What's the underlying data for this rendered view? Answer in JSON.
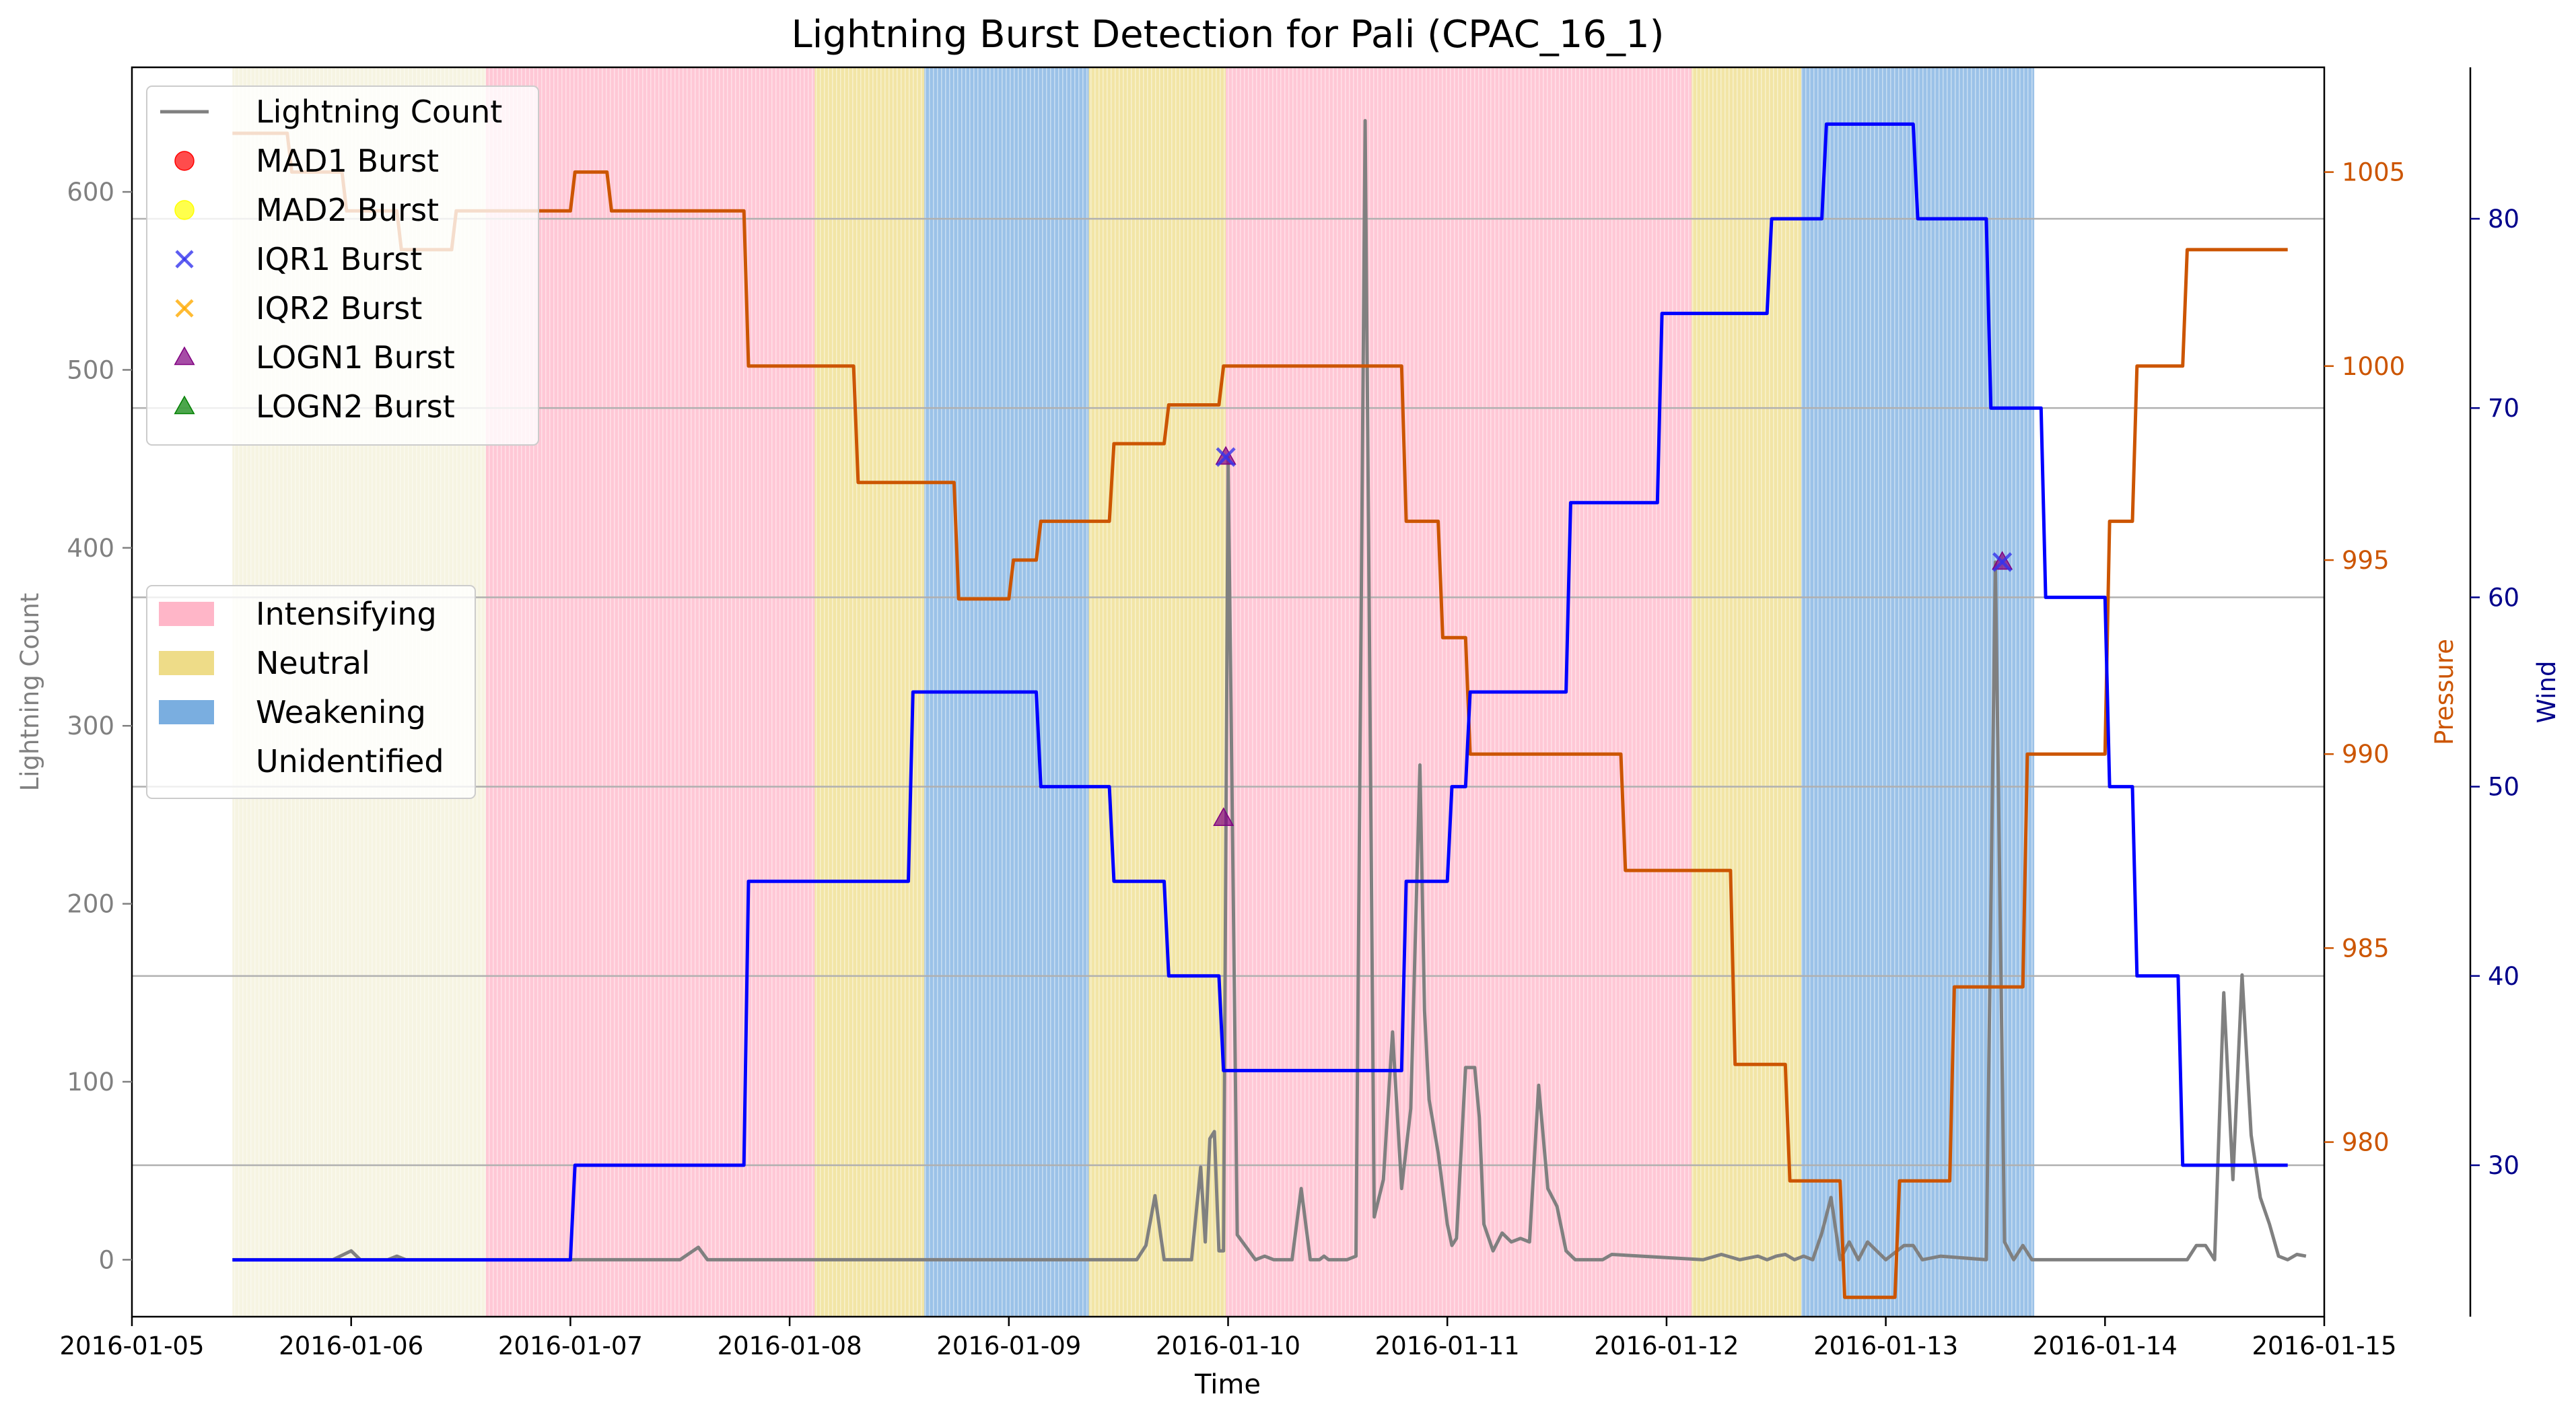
{
  "chart_data": {
    "type": "line",
    "title": "Lightning Burst Detection for Pali (CPAC_16_1)",
    "xlabel": "Time",
    "x_range": [
      "2016-01-05T00:00",
      "2016-01-15T00:00"
    ],
    "x_ticks": [
      "2016-01-05",
      "2016-01-06",
      "2016-01-07",
      "2016-01-08",
      "2016-01-09",
      "2016-01-10",
      "2016-01-11",
      "2016-01-12",
      "2016-01-13",
      "2016-01-14",
      "2016-01-15"
    ],
    "grid": "horizontal lines at the wind axis ticks",
    "colors": {
      "lightning": "#808080",
      "pressure": "#cc5500",
      "wind": "#0000ff",
      "wind_axis": "#00008b",
      "intensifying": "#ffb6c8",
      "neutral": "#eedc88",
      "weakening": "#7aaee0",
      "unidentified": "#ffffff",
      "mad1": "#ff0000",
      "mad2": "#ffff00",
      "iqr1": "#3333ee",
      "iqr2": "#ffaa00",
      "logn1": "#800080",
      "logn2": "#008000",
      "grid": "#b0b0b0",
      "dark_neutral": "#f6f4e2"
    },
    "axes": {
      "lightning": {
        "label": "Lightning Count",
        "range": [
          -32,
          670
        ],
        "ticks": [
          0,
          100,
          200,
          300,
          400,
          500,
          600
        ]
      },
      "pressure": {
        "label": "Pressure",
        "range": [
          975.5,
          1007.7
        ],
        "ticks": [
          980,
          985,
          990,
          995,
          1000,
          1005
        ]
      },
      "wind": {
        "label": "Wind",
        "range": [
          22,
          88
        ],
        "ticks": [
          30,
          40,
          50,
          60,
          70,
          80
        ]
      }
    },
    "stages": [
      {
        "start": "2016-01-05T11:00",
        "end": "2016-01-06T14:45",
        "stage": "Neutral",
        "tone": "light"
      },
      {
        "start": "2016-01-06T14:45",
        "end": "2016-01-08T02:45",
        "stage": "Intensifying"
      },
      {
        "start": "2016-01-08T02:45",
        "end": "2016-01-08T14:45",
        "stage": "Neutral"
      },
      {
        "start": "2016-01-08T14:45",
        "end": "2016-01-09T08:45",
        "stage": "Weakening"
      },
      {
        "start": "2016-01-09T08:45",
        "end": "2016-01-09T23:45",
        "stage": "Neutral"
      },
      {
        "start": "2016-01-09T23:45",
        "end": "2016-01-12T02:45",
        "stage": "Intensifying"
      },
      {
        "start": "2016-01-12T02:45",
        "end": "2016-01-12T14:45",
        "stage": "Neutral"
      },
      {
        "start": "2016-01-12T14:45",
        "end": "2016-01-13T16:15",
        "stage": "Weakening"
      }
    ],
    "series": [
      {
        "name": "Lightning Count",
        "axis": "lightning",
        "x": [
          "2016-01-05T11:00",
          "2016-01-05T12:00",
          "2016-01-05T13:00",
          "2016-01-05T14:00",
          "2016-01-05T22:00",
          "2016-01-06T00:00",
          "2016-01-06T01:00",
          "2016-01-06T02:00",
          "2016-01-06T04:00",
          "2016-01-06T05:00",
          "2016-01-06T06:00",
          "2016-01-06T12:00",
          "2016-01-06T14:00",
          "2016-01-06T18:00",
          "2016-01-07T00:00",
          "2016-01-07T12:00",
          "2016-01-07T14:00",
          "2016-01-07T15:00",
          "2016-01-07T16:00",
          "2016-01-09T00:00",
          "2016-01-09T12:00",
          "2016-01-09T13:00",
          "2016-01-09T14:00",
          "2016-01-09T15:00",
          "2016-01-09T16:00",
          "2016-01-09T17:00",
          "2016-01-09T18:00",
          "2016-01-09T19:00",
          "2016-01-09T20:00",
          "2016-01-09T21:00",
          "2016-01-09T21:30",
          "2016-01-09T22:00",
          "2016-01-09T22:30",
          "2016-01-09T23:00",
          "2016-01-09T23:30",
          "2016-01-10T00:00",
          "2016-01-10T01:00",
          "2016-01-10T03:00",
          "2016-01-10T04:00",
          "2016-01-10T05:00",
          "2016-01-10T06:00",
          "2016-01-10T07:00",
          "2016-01-10T08:00",
          "2016-01-10T09:00",
          "2016-01-10T10:00",
          "2016-01-10T10:30",
          "2016-01-10T11:00",
          "2016-01-10T12:00",
          "2016-01-10T13:00",
          "2016-01-10T14:00",
          "2016-01-10T15:00",
          "2016-01-10T16:00",
          "2016-01-10T17:00",
          "2016-01-10T18:00",
          "2016-01-10T19:00",
          "2016-01-10T20:00",
          "2016-01-10T21:00",
          "2016-01-10T21:30",
          "2016-01-10T22:00",
          "2016-01-10T23:00",
          "2016-01-11T00:00",
          "2016-01-11T00:30",
          "2016-01-11T01:00",
          "2016-01-11T02:00",
          "2016-01-11T03:00",
          "2016-01-11T03:30",
          "2016-01-11T04:00",
          "2016-01-11T05:00",
          "2016-01-11T06:00",
          "2016-01-11T07:00",
          "2016-01-11T08:00",
          "2016-01-11T09:00",
          "2016-01-11T10:00",
          "2016-01-11T11:00",
          "2016-01-11T12:00",
          "2016-01-11T13:00",
          "2016-01-11T14:00",
          "2016-01-11T16:00",
          "2016-01-11T17:00",
          "2016-01-11T18:00",
          "2016-01-12T04:00",
          "2016-01-12T06:00",
          "2016-01-12T08:00",
          "2016-01-12T10:00",
          "2016-01-12T11:00",
          "2016-01-12T12:00",
          "2016-01-12T13:00",
          "2016-01-12T14:00",
          "2016-01-12T15:00",
          "2016-01-12T16:00",
          "2016-01-12T17:00",
          "2016-01-12T18:00",
          "2016-01-12T19:00",
          "2016-01-12T20:00",
          "2016-01-12T21:00",
          "2016-01-12T22:00",
          "2016-01-13T00:00",
          "2016-01-13T02:00",
          "2016-01-13T03:00",
          "2016-01-13T04:00",
          "2016-01-13T06:00",
          "2016-01-13T11:00",
          "2016-01-13T12:00",
          "2016-01-13T13:00",
          "2016-01-13T14:00",
          "2016-01-13T15:00",
          "2016-01-13T16:00",
          "2016-01-13T17:00",
          "2016-01-13T18:00",
          "2016-01-14T00:00",
          "2016-01-14T08:00",
          "2016-01-14T09:00",
          "2016-01-14T10:00",
          "2016-01-14T11:00",
          "2016-01-14T12:00",
          "2016-01-14T13:00",
          "2016-01-14T14:00",
          "2016-01-14T15:00",
          "2016-01-14T16:00",
          "2016-01-14T17:00",
          "2016-01-14T18:00",
          "2016-01-14T19:00",
          "2016-01-14T20:00",
          "2016-01-14T21:00",
          "2016-01-14T22:00"
        ],
        "values": [
          0,
          0,
          0,
          0,
          0,
          5,
          0,
          0,
          0,
          2,
          0,
          0,
          0,
          0,
          0,
          0,
          7,
          0,
          0,
          0,
          0,
          0,
          0,
          8,
          36,
          0,
          0,
          0,
          0,
          52,
          10,
          68,
          72,
          5,
          5,
          451,
          14,
          0,
          2,
          0,
          0,
          0,
          40,
          0,
          0,
          2,
          0,
          0,
          0,
          2,
          640,
          24,
          45,
          128,
          40,
          85,
          278,
          140,
          90,
          60,
          20,
          8,
          12,
          108,
          108,
          80,
          20,
          5,
          15,
          10,
          12,
          10,
          98,
          40,
          30,
          5,
          0,
          0,
          0,
          3,
          0,
          3,
          0,
          2,
          0,
          2,
          3,
          0,
          2,
          0,
          15,
          35,
          0,
          10,
          0,
          10,
          0,
          8,
          8,
          0,
          2,
          0,
          392,
          10,
          0,
          8,
          0,
          0,
          0,
          0,
          0,
          0,
          8,
          8,
          0,
          150,
          45,
          160,
          70,
          35,
          20,
          2,
          0,
          3,
          2
        ],
        "show_all_samples": true
      },
      {
        "name": "Pressure",
        "axis": "pressure",
        "x": [
          "2016-01-05T11:00",
          "2016-01-05T17:00",
          "2016-01-05T17:30",
          "2016-01-05T23:00",
          "2016-01-05T23:30",
          "2016-01-06T05:00",
          "2016-01-06T05:30",
          "2016-01-06T11:00",
          "2016-01-06T11:30",
          "2016-01-07T00:00",
          "2016-01-07T00:30",
          "2016-01-07T04:00",
          "2016-01-07T04:30",
          "2016-01-07T19:00",
          "2016-01-07T19:30",
          "2016-01-08T07:00",
          "2016-01-08T07:30",
          "2016-01-08T18:00",
          "2016-01-08T18:30",
          "2016-01-09T00:00",
          "2016-01-09T00:30",
          "2016-01-09T03:00",
          "2016-01-09T03:30",
          "2016-01-09T11:00",
          "2016-01-09T11:30",
          "2016-01-09T17:00",
          "2016-01-09T17:30",
          "2016-01-09T23:00",
          "2016-01-09T23:30",
          "2016-01-10T19:00",
          "2016-01-10T19:30",
          "2016-01-10T23:00",
          "2016-01-10T23:30",
          "2016-01-11T02:00",
          "2016-01-11T02:30",
          "2016-01-11T19:00",
          "2016-01-11T19:30",
          "2016-01-12T07:00",
          "2016-01-12T07:30",
          "2016-01-12T13:00",
          "2016-01-12T13:30",
          "2016-01-12T19:00",
          "2016-01-12T19:30",
          "2016-01-13T01:00",
          "2016-01-13T01:30",
          "2016-01-13T07:00",
          "2016-01-13T07:30",
          "2016-01-13T15:00",
          "2016-01-13T15:30",
          "2016-01-14T00:00",
          "2016-01-14T00:30",
          "2016-01-14T03:00",
          "2016-01-14T03:30",
          "2016-01-14T08:30",
          "2016-01-14T09:00",
          "2016-01-14T20:00"
        ],
        "values": [
          1006,
          1006,
          1005,
          1005,
          1004,
          1004,
          1003,
          1003,
          1004,
          1004,
          1005,
          1005,
          1004,
          1004,
          1000,
          1000,
          997,
          997,
          994,
          994,
          995,
          995,
          996,
          996,
          998,
          998,
          999,
          999,
          1000,
          1000,
          996,
          996,
          993,
          993,
          990,
          990,
          987,
          987,
          982,
          982,
          979,
          979,
          976,
          976,
          979,
          979,
          984,
          984,
          990,
          990,
          996,
          996,
          1000,
          1000,
          1003,
          1003
        ],
        "draw_as_path": true
      },
      {
        "name": "Wind",
        "axis": "wind",
        "x": [
          "2016-01-05T11:00",
          "2016-01-07T00:00",
          "2016-01-07T00:30",
          "2016-01-07T19:00",
          "2016-01-07T19:30",
          "2016-01-08T13:00",
          "2016-01-08T13:30",
          "2016-01-09T03:00",
          "2016-01-09T03:30",
          "2016-01-09T11:00",
          "2016-01-09T11:30",
          "2016-01-09T17:00",
          "2016-01-09T17:30",
          "2016-01-09T23:00",
          "2016-01-09T23:30",
          "2016-01-10T19:00",
          "2016-01-10T19:30",
          "2016-01-11T00:00",
          "2016-01-11T00:30",
          "2016-01-11T02:00",
          "2016-01-11T02:30",
          "2016-01-11T13:00",
          "2016-01-11T13:30",
          "2016-01-11T23:00",
          "2016-01-11T23:30",
          "2016-01-12T11:00",
          "2016-01-12T11:30",
          "2016-01-12T17:00",
          "2016-01-12T17:30",
          "2016-01-13T03:00",
          "2016-01-13T03:30",
          "2016-01-13T11:00",
          "2016-01-13T11:30",
          "2016-01-13T17:00",
          "2016-01-13T17:30",
          "2016-01-14T00:00",
          "2016-01-14T00:30",
          "2016-01-14T03:00",
          "2016-01-14T03:30",
          "2016-01-14T08:00",
          "2016-01-14T08:30",
          "2016-01-14T20:00"
        ],
        "values": [
          25,
          25,
          30,
          30,
          45,
          45,
          55,
          55,
          50,
          50,
          45,
          45,
          40,
          40,
          35,
          35,
          45,
          45,
          50,
          50,
          55,
          55,
          65,
          65,
          75,
          75,
          80,
          80,
          85,
          85,
          80,
          80,
          70,
          70,
          60,
          60,
          50,
          50,
          40,
          40,
          30,
          30
        ],
        "draw_as_path": true
      }
    ],
    "bursts": {
      "IQR1 Burst": [
        {
          "x": "2016-01-09T23:45",
          "y": 451
        },
        {
          "x": "2016-01-13T12:45",
          "y": 392
        }
      ],
      "LOGN1 Burst": [
        {
          "x": "2016-01-09T23:45",
          "y": 451
        },
        {
          "x": "2016-01-09T23:30",
          "y": 248
        },
        {
          "x": "2016-01-13T12:45",
          "y": 392
        }
      ]
    },
    "legend_markers": [
      {
        "label": "Lightning Count",
        "kind": "line",
        "color": "lightning"
      },
      {
        "label": "MAD1 Burst",
        "kind": "circle",
        "color": "mad1"
      },
      {
        "label": "MAD2 Burst",
        "kind": "circle",
        "color": "mad2"
      },
      {
        "label": "IQR1 Burst",
        "kind": "cross",
        "color": "iqr1"
      },
      {
        "label": "IQR2 Burst",
        "kind": "cross",
        "color": "iqr2"
      },
      {
        "label": "LOGN1 Burst",
        "kind": "triangle",
        "color": "logn1"
      },
      {
        "label": "LOGN2 Burst",
        "kind": "triangle",
        "color": "logn2"
      }
    ],
    "legend_stages": [
      {
        "label": "Intensifying",
        "color": "intensifying"
      },
      {
        "label": "Neutral",
        "color": "neutral"
      },
      {
        "label": "Weakening",
        "color": "weakening"
      },
      {
        "label": "Unidentified",
        "color": "unidentified"
      }
    ],
    "legend_placement": "upper-left (markers), center-left (stages)"
  }
}
